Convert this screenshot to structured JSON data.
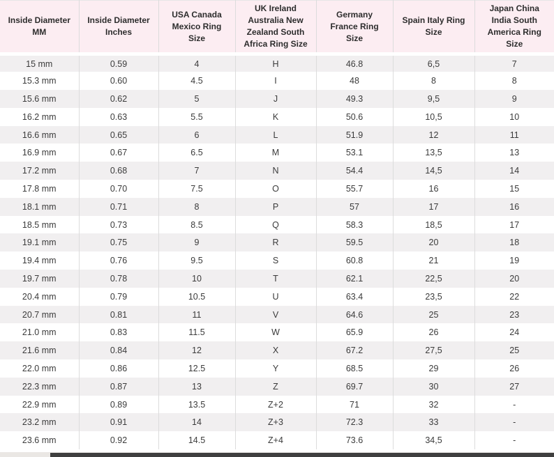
{
  "colors": {
    "header_bg": "#fcedf2",
    "alt_row_bg": "#f1eff0",
    "row_bg": "#ffffff",
    "text": "#3b3b3b",
    "border": "#dcdcdc",
    "scrollbar_track": "#eae7e4",
    "scrollbar_thumb": "#3f3f3f"
  },
  "table": {
    "columns": [
      "Inside Diameter MM",
      "Inside Diameter Inches",
      "USA Canada Mexico Ring Size",
      "UK Ireland Australia New Zealand South Africa Ring Size",
      "Germany France Ring Size",
      "Spain Italy Ring Size",
      "Japan China India South America Ring Size"
    ],
    "rows": [
      [
        "15 mm",
        "0.59",
        "4",
        "H",
        "46.8",
        "6,5",
        "7"
      ],
      [
        "15.3 mm",
        "0.60",
        "4.5",
        "I",
        "48",
        "8",
        "8"
      ],
      [
        "15.6 mm",
        "0.62",
        "5",
        "J",
        "49.3",
        "9,5",
        "9"
      ],
      [
        "16.2 mm",
        "0.63",
        "5.5",
        "K",
        "50.6",
        "10,5",
        "10"
      ],
      [
        "16.6 mm",
        "0.65",
        "6",
        "L",
        "51.9",
        "12",
        "11"
      ],
      [
        "16.9 mm",
        "0.67",
        "6.5",
        "M",
        "53.1",
        "13,5",
        "13"
      ],
      [
        "17.2 mm",
        "0.68",
        "7",
        "N",
        "54.4",
        "14,5",
        "14"
      ],
      [
        "17.8 mm",
        "0.70",
        "7.5",
        "O",
        "55.7",
        "16",
        "15"
      ],
      [
        "18.1 mm",
        "0.71",
        "8",
        "P",
        "57",
        "17",
        "16"
      ],
      [
        "18.5 mm",
        "0.73",
        "8.5",
        "Q",
        "58.3",
        "18,5",
        "17"
      ],
      [
        "19.1 mm",
        "0.75",
        "9",
        "R",
        "59.5",
        "20",
        "18"
      ],
      [
        "19.4 mm",
        "0.76",
        "9.5",
        "S",
        "60.8",
        "21",
        "19"
      ],
      [
        "19.7 mm",
        "0.78",
        "10",
        "T",
        "62.1",
        "22,5",
        "20"
      ],
      [
        "20.4 mm",
        "0.79",
        "10.5",
        "U",
        "63.4",
        "23,5",
        "22"
      ],
      [
        "20.7 mm",
        "0.81",
        "11",
        "V",
        "64.6",
        "25",
        "23"
      ],
      [
        "21.0 mm",
        "0.83",
        "11.5",
        "W",
        "65.9",
        "26",
        "24"
      ],
      [
        "21.6 mm",
        "0.84",
        "12",
        "X",
        "67.2",
        "27,5",
        "25"
      ],
      [
        "22.0 mm",
        "0.86",
        "12.5",
        "Y",
        "68.5",
        "29",
        "26"
      ],
      [
        "22.3 mm",
        "0.87",
        "13",
        "Z",
        "69.7",
        "30",
        "27"
      ],
      [
        "22.9 mm",
        "0.89",
        "13.5",
        "Z+2",
        "71",
        "32",
        "-"
      ],
      [
        "23.2 mm",
        "0.91",
        "14",
        "Z+3",
        "72.3",
        "33",
        "-"
      ],
      [
        "23.6 mm",
        "0.92",
        "14.5",
        "Z+4",
        "73.6",
        "34,5",
        "-"
      ]
    ]
  }
}
